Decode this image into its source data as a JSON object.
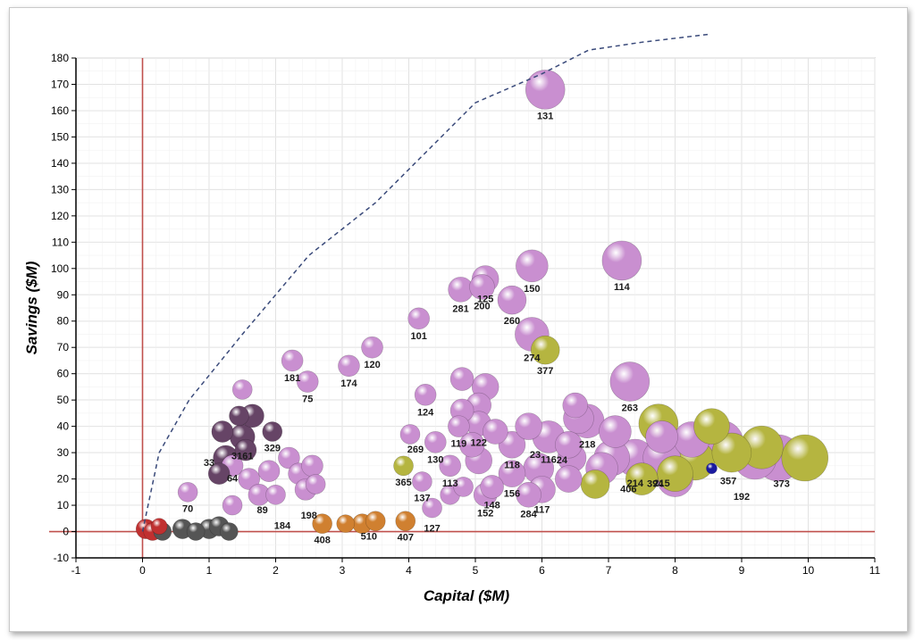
{
  "chart_data": {
    "type": "scatter",
    "subtype": "bubble",
    "xlabel": "Capital ($M)",
    "ylabel": "Savings ($M)",
    "xlim": [
      -1,
      11
    ],
    "ylim": [
      -10,
      180
    ],
    "x_ticks": [
      -1,
      0,
      1,
      2,
      3,
      4,
      5,
      6,
      7,
      8,
      9,
      10,
      11
    ],
    "y_ticks": [
      -10,
      0,
      10,
      20,
      30,
      40,
      50,
      60,
      70,
      80,
      90,
      100,
      110,
      120,
      130,
      140,
      150,
      160,
      170,
      180
    ],
    "grid": true,
    "legend": "none",
    "reference_lines": {
      "x": 0,
      "y": 0,
      "color": "#c0504d"
    },
    "frontier": {
      "style": "dashed",
      "color": "#3a4a7a",
      "points": [
        [
          0,
          0
        ],
        [
          0.25,
          30
        ],
        [
          0.7,
          50
        ],
        [
          1.5,
          75
        ],
        [
          2.5,
          105
        ],
        [
          3.5,
          125
        ],
        [
          5,
          163
        ],
        [
          6,
          174
        ],
        [
          6.7,
          183
        ],
        [
          7.5,
          186
        ],
        [
          8.5,
          189
        ]
      ]
    },
    "series": [
      {
        "name": "",
        "color": "#c98fd0",
        "points": [
          {
            "x": 6.05,
            "y": 168,
            "r": 22,
            "label": "131"
          },
          {
            "x": 7.2,
            "y": 103,
            "r": 22,
            "label": "114"
          },
          {
            "x": 5.85,
            "y": 101,
            "r": 18,
            "label": "150"
          },
          {
            "x": 5.15,
            "y": 96,
            "r": 15,
            "label": "125"
          },
          {
            "x": 4.78,
            "y": 92,
            "r": 14,
            "label": "281"
          },
          {
            "x": 5.1,
            "y": 93,
            "r": 14,
            "label": "200"
          },
          {
            "x": 5.55,
            "y": 88,
            "r": 16,
            "label": "260"
          },
          {
            "x": 5.85,
            "y": 75,
            "r": 19,
            "label": "274"
          },
          {
            "x": 4.15,
            "y": 81,
            "r": 12,
            "label": "101"
          },
          {
            "x": 3.45,
            "y": 70,
            "r": 12,
            "label": "120"
          },
          {
            "x": 3.1,
            "y": 63,
            "r": 12,
            "label": "174"
          },
          {
            "x": 2.25,
            "y": 65,
            "r": 12,
            "label": "181"
          },
          {
            "x": 2.48,
            "y": 57,
            "r": 12,
            "label": "75"
          },
          {
            "x": 7.32,
            "y": 57,
            "r": 22,
            "label": "263"
          },
          {
            "x": 4.25,
            "y": 52,
            "r": 12,
            "label": "124"
          },
          {
            "x": 4.8,
            "y": 58,
            "r": 13,
            "label": ""
          },
          {
            "x": 5.15,
            "y": 55,
            "r": 15,
            "label": ""
          },
          {
            "x": 5.05,
            "y": 48,
            "r": 14,
            "label": ""
          },
          {
            "x": 4.75,
            "y": 40,
            "r": 12,
            "label": "119"
          },
          {
            "x": 4.8,
            "y": 46,
            "r": 13,
            "label": ""
          },
          {
            "x": 5.05,
            "y": 41,
            "r": 14,
            "label": "122"
          },
          {
            "x": 4.02,
            "y": 37,
            "r": 11,
            "label": ""
          },
          {
            "x": 4.4,
            "y": 34,
            "r": 12,
            "label": "130"
          },
          {
            "x": 4.95,
            "y": 33,
            "r": 14,
            "label": ""
          },
          {
            "x": 4.62,
            "y": 25,
            "r": 12,
            "label": "113"
          },
          {
            "x": 5.05,
            "y": 27,
            "r": 15,
            "label": ""
          },
          {
            "x": 4.2,
            "y": 19,
            "r": 11,
            "label": "137"
          },
          {
            "x": 4.62,
            "y": 14,
            "r": 11,
            "label": ""
          },
          {
            "x": 4.82,
            "y": 17,
            "r": 11,
            "label": ""
          },
          {
            "x": 5.15,
            "y": 14,
            "r": 13,
            "label": "152"
          },
          {
            "x": 5.25,
            "y": 17,
            "r": 13,
            "label": "148"
          },
          {
            "x": 4.35,
            "y": 9,
            "r": 11,
            "label": ""
          },
          {
            "x": 5.3,
            "y": 38,
            "r": 14,
            "label": ""
          },
          {
            "x": 5.55,
            "y": 33,
            "r": 15,
            "label": "118"
          },
          {
            "x": 5.55,
            "y": 22,
            "r": 15,
            "label": "156"
          },
          {
            "x": 5.8,
            "y": 40,
            "r": 15,
            "label": ""
          },
          {
            "x": 5.95,
            "y": 24,
            "r": 17,
            "label": ""
          },
          {
            "x": 6.0,
            "y": 16,
            "r": 15,
            "label": "117"
          },
          {
            "x": 5.8,
            "y": 14,
            "r": 14,
            "label": "284"
          },
          {
            "x": 6.1,
            "y": 36,
            "r": 18,
            "label": "116"
          },
          {
            "x": 6.4,
            "y": 33,
            "r": 15,
            "label": ""
          },
          {
            "x": 6.45,
            "y": 28,
            "r": 16,
            "label": ""
          },
          {
            "x": 6.55,
            "y": 43,
            "r": 17,
            "label": ""
          },
          {
            "x": 6.5,
            "y": 48,
            "r": 14,
            "label": ""
          },
          {
            "x": 6.68,
            "y": 42,
            "r": 19,
            "label": "218"
          },
          {
            "x": 6.4,
            "y": 20,
            "r": 15,
            "label": ""
          },
          {
            "x": 6.9,
            "y": 24,
            "r": 18,
            "label": ""
          },
          {
            "x": 7.1,
            "y": 38,
            "r": 18,
            "label": ""
          },
          {
            "x": 7.05,
            "y": 28,
            "r": 20,
            "label": ""
          },
          {
            "x": 7.4,
            "y": 28,
            "r": 21,
            "label": "214"
          },
          {
            "x": 7.8,
            "y": 28,
            "r": 21,
            "label": "215"
          },
          {
            "x": 7.8,
            "y": 36,
            "r": 18,
            "label": ""
          },
          {
            "x": 8.0,
            "y": 20,
            "r": 20,
            "label": ""
          },
          {
            "x": 8.25,
            "y": 35,
            "r": 20,
            "label": ""
          },
          {
            "x": 8.7,
            "y": 34,
            "r": 24,
            "label": ""
          },
          {
            "x": 9.2,
            "y": 28,
            "r": 24,
            "label": ""
          },
          {
            "x": 9.55,
            "y": 28,
            "r": 26,
            "label": ""
          },
          {
            "x": 0.68,
            "y": 15,
            "r": 11,
            "label": "70"
          },
          {
            "x": 1.5,
            "y": 54,
            "r": 11,
            "label": ""
          },
          {
            "x": 1.35,
            "y": 25,
            "r": 12,
            "label": ""
          },
          {
            "x": 1.35,
            "y": 10,
            "r": 11,
            "label": ""
          },
          {
            "x": 1.6,
            "y": 20,
            "r": 12,
            "label": ""
          },
          {
            "x": 1.75,
            "y": 14,
            "r": 12,
            "label": ""
          },
          {
            "x": 1.9,
            "y": 23,
            "r": 12,
            "label": ""
          },
          {
            "x": 2.0,
            "y": 14,
            "r": 11,
            "label": ""
          },
          {
            "x": 2.2,
            "y": 28,
            "r": 12,
            "label": ""
          },
          {
            "x": 2.35,
            "y": 22,
            "r": 12,
            "label": ""
          },
          {
            "x": 2.45,
            "y": 16,
            "r": 12,
            "label": ""
          },
          {
            "x": 2.55,
            "y": 25,
            "r": 12,
            "label": ""
          },
          {
            "x": 2.6,
            "y": 18,
            "r": 11,
            "label": ""
          }
        ]
      },
      {
        "name": "",
        "color": "#b5b540",
        "points": [
          {
            "x": 6.05,
            "y": 69,
            "r": 16,
            "label": "377"
          },
          {
            "x": 3.92,
            "y": 25,
            "r": 11,
            "label": "365"
          },
          {
            "x": 7.75,
            "y": 41,
            "r": 22,
            "label": ""
          },
          {
            "x": 8.0,
            "y": 22,
            "r": 20,
            "label": ""
          },
          {
            "x": 8.3,
            "y": 27,
            "r": 22,
            "label": ""
          },
          {
            "x": 8.55,
            "y": 40,
            "r": 20,
            "label": ""
          },
          {
            "x": 8.85,
            "y": 30,
            "r": 22,
            "label": ""
          },
          {
            "x": 9.3,
            "y": 32,
            "r": 24,
            "label": ""
          },
          {
            "x": 9.95,
            "y": 28,
            "r": 26,
            "label": ""
          },
          {
            "x": 7.5,
            "y": 20,
            "r": 18,
            "label": ""
          },
          {
            "x": 6.8,
            "y": 18,
            "r": 16,
            "label": ""
          }
        ]
      },
      {
        "name": "",
        "color": "#664466",
        "points": [
          {
            "x": 1.45,
            "y": 44,
            "r": 11,
            "label": ""
          },
          {
            "x": 1.65,
            "y": 44,
            "r": 13,
            "label": ""
          },
          {
            "x": 1.2,
            "y": 38,
            "r": 12,
            "label": ""
          },
          {
            "x": 1.5,
            "y": 36,
            "r": 14,
            "label": "3161"
          },
          {
            "x": 1.95,
            "y": 38,
            "r": 11,
            "label": "329"
          },
          {
            "x": 1.25,
            "y": 28,
            "r": 14,
            "label": ""
          },
          {
            "x": 1.55,
            "y": 31,
            "r": 12,
            "label": ""
          },
          {
            "x": 1.15,
            "y": 22,
            "r": 12,
            "label": ""
          }
        ]
      },
      {
        "name": "",
        "color": "#d08030",
        "points": [
          {
            "x": 2.7,
            "y": 3,
            "r": 11,
            "label": "408"
          },
          {
            "x": 3.05,
            "y": 3,
            "r": 10,
            "label": ""
          },
          {
            "x": 3.3,
            "y": 3,
            "r": 11,
            "label": ""
          },
          {
            "x": 3.5,
            "y": 4,
            "r": 11,
            "label": ""
          },
          {
            "x": 3.95,
            "y": 4,
            "r": 11,
            "label": "407"
          }
        ]
      },
      {
        "name": "",
        "color": "#c03030",
        "points": [
          {
            "x": 0.05,
            "y": 1,
            "r": 11,
            "label": ""
          },
          {
            "x": 0.15,
            "y": 0,
            "r": 10,
            "label": ""
          },
          {
            "x": 0.25,
            "y": 2,
            "r": 9,
            "label": ""
          }
        ]
      },
      {
        "name": "",
        "color": "#555555",
        "points": [
          {
            "x": 0.3,
            "y": 0,
            "r": 10,
            "label": ""
          },
          {
            "x": 0.6,
            "y": 1,
            "r": 11,
            "label": ""
          },
          {
            "x": 0.8,
            "y": 0,
            "r": 10,
            "label": ""
          },
          {
            "x": 1.0,
            "y": 1,
            "r": 11,
            "label": ""
          },
          {
            "x": 1.15,
            "y": 2,
            "r": 11,
            "label": ""
          },
          {
            "x": 1.3,
            "y": 0,
            "r": 10,
            "label": ""
          }
        ]
      },
      {
        "name": "",
        "color": "#1a1aa0",
        "points": [
          {
            "x": 8.55,
            "y": 24,
            "r": 6,
            "label": ""
          }
        ]
      }
    ],
    "extra_labels": [
      {
        "x": 4.1,
        "y": 30,
        "label": "269"
      },
      {
        "x": 5.9,
        "y": 28,
        "label": "23"
      },
      {
        "x": 6.3,
        "y": 26,
        "label": "24"
      },
      {
        "x": 7.7,
        "y": 17,
        "label": "394"
      },
      {
        "x": 7.3,
        "y": 15,
        "label": "406"
      },
      {
        "x": 8.8,
        "y": 18,
        "label": "357"
      },
      {
        "x": 9.0,
        "y": 12,
        "label": "192"
      },
      {
        "x": 9.6,
        "y": 17,
        "label": "373"
      },
      {
        "x": 1.0,
        "y": 25,
        "label": "33"
      },
      {
        "x": 1.35,
        "y": 19,
        "label": "64"
      },
      {
        "x": 2.1,
        "y": 1,
        "label": "184"
      },
      {
        "x": 2.5,
        "y": 5,
        "label": "198"
      },
      {
        "x": 1.8,
        "y": 7,
        "label": "89"
      },
      {
        "x": 4.35,
        "y": 0,
        "label": "127"
      },
      {
        "x": 3.4,
        "y": -3,
        "label": "510"
      }
    ]
  }
}
